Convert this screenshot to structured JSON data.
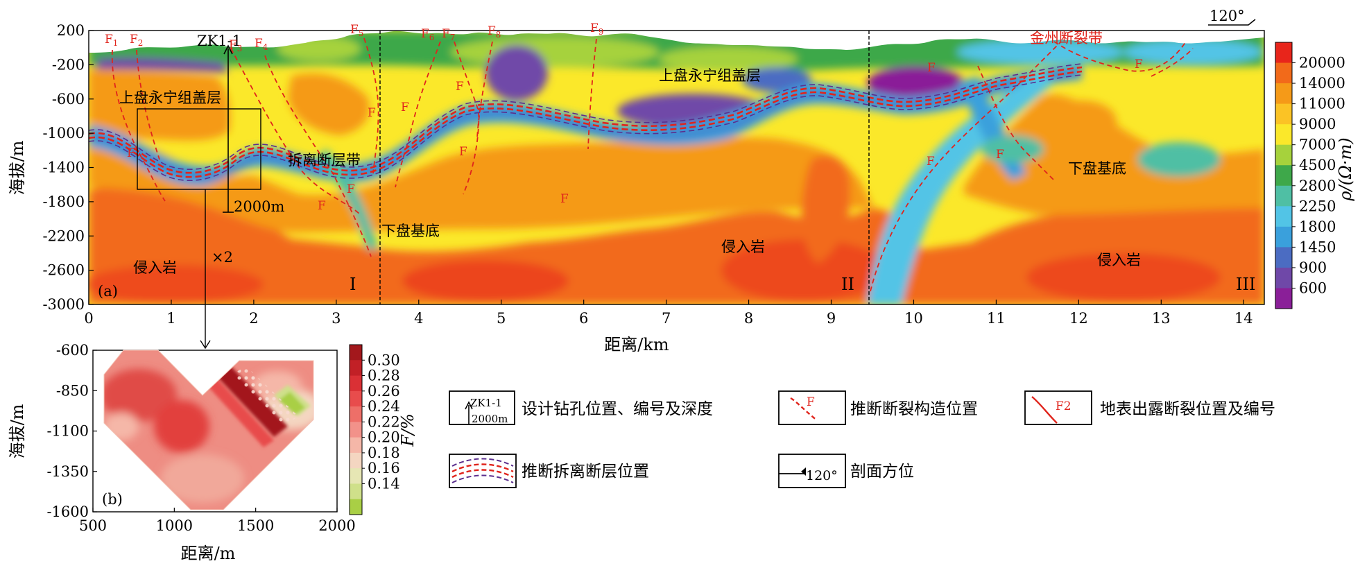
{
  "panel_a": {
    "label": "(a)",
    "xlabel": "距离/km",
    "ylabel": "海拔/m",
    "xticks": [
      "0",
      "1",
      "2",
      "3",
      "4",
      "5",
      "6",
      "7",
      "8",
      "9",
      "10",
      "11",
      "12",
      "13",
      "14"
    ],
    "yticks": [
      "200",
      "-200",
      "-600",
      "-1000",
      "-1400",
      "-1800",
      "-2200",
      "-2600",
      "-3000"
    ],
    "xlim": [
      0,
      14.25
    ],
    "ylim": [
      -3000,
      200
    ],
    "colorbar_label": "ρ/(Ω·m)",
    "colorbar_ticks": [
      "20000",
      "14000",
      "11000",
      "9000",
      "7000",
      "4500",
      "2800",
      "2250",
      "1800",
      "1450",
      "900",
      "600"
    ],
    "colorbar_colors": [
      "#e8251b",
      "#f26a1a",
      "#f59a18",
      "#fbc325",
      "#fbe82a",
      "#a6d23c",
      "#3ea84a",
      "#4fbfa4",
      "#52c4e6",
      "#3aa0dc",
      "#4b6cc2",
      "#6f48a8",
      "#8a1f98"
    ],
    "section_numbers": [
      "I",
      "II",
      "III"
    ],
    "faults": [
      "F1",
      "F2",
      "F3",
      "F4",
      "F5",
      "F6",
      "F7",
      "F8",
      "F9"
    ],
    "fault_marks": [
      "F",
      "F",
      "F",
      "F",
      "F",
      "F",
      "F",
      "F",
      "F",
      "F",
      "F",
      "F"
    ],
    "borehole": {
      "name": "ZK1-1",
      "depth": "2000m"
    },
    "zoom_factor": "×2",
    "fault_zone": "金州断裂带",
    "units": {
      "cover_left": "上盘永宁组盖层",
      "cover_right": "上盘永宁组盖层",
      "detachment": "拆离断层带",
      "basement_left": "下盘基底",
      "basement_right": "下盘基底",
      "intrusion_1": "侵入岩",
      "intrusion_2": "侵入岩",
      "intrusion_3": "侵入岩"
    },
    "azimuth": "120°"
  },
  "panel_b": {
    "label": "(b)",
    "xlabel": "距离/m",
    "ylabel": "海拔/m",
    "xticks": [
      "500",
      "1000",
      "1500",
      "2000"
    ],
    "yticks": [
      "-600",
      "-850",
      "-1100",
      "-1350",
      "-1600"
    ],
    "xlim": [
      500,
      2000
    ],
    "ylim": [
      -1600,
      -600
    ],
    "colorbar_label": "F/%",
    "colorbar_ticks": [
      "0.30",
      "0.28",
      "0.26",
      "0.24",
      "0.22",
      "0.20",
      "0.18",
      "0.16",
      "0.14"
    ],
    "colorbar_colors": [
      "#a3181c",
      "#c22026",
      "#da3035",
      "#e84c4c",
      "#ee6f68",
      "#f2928a",
      "#f5b7a8",
      "#f4d6c1",
      "#e6e6b4",
      "#cfe08a",
      "#a9cf45"
    ]
  },
  "legend": [
    {
      "sym_text_1": "ZK1-1",
      "sym_text_2": "2000m",
      "label": "设计钻孔位置、编号及深度"
    },
    {
      "sym_text_1": "F",
      "label": "推断断裂构造位置"
    },
    {
      "sym_text_1": "F2",
      "label": "地表出露断裂位置及编号"
    },
    {
      "label": "推断拆离断层位置"
    },
    {
      "sym_text_1": "120°",
      "label": "剖面方位"
    }
  ]
}
